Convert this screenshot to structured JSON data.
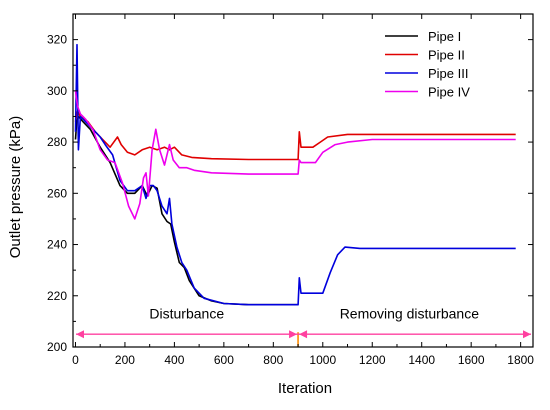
{
  "chart_data": {
    "type": "line",
    "xlabel": "Iteration",
    "ylabel": "Outlet pressure (kPa)",
    "xlim": [
      -10,
      1850
    ],
    "ylim": [
      200,
      330
    ],
    "xticks": [
      0,
      200,
      400,
      600,
      800,
      1000,
      1200,
      1400,
      1600,
      1800
    ],
    "yticks": [
      200,
      220,
      240,
      260,
      280,
      300,
      320
    ],
    "grid": false,
    "legend_position": "top-right",
    "series": [
      {
        "name": "Pipe I",
        "color": "#000000",
        "points": [
          [
            0,
            281
          ],
          [
            5,
            288
          ],
          [
            12,
            290
          ],
          [
            30,
            288
          ],
          [
            60,
            285
          ],
          [
            100,
            278
          ],
          [
            140,
            272
          ],
          [
            180,
            263
          ],
          [
            210,
            260
          ],
          [
            240,
            260
          ],
          [
            270,
            263
          ],
          [
            290,
            259
          ],
          [
            310,
            263
          ],
          [
            330,
            262
          ],
          [
            350,
            252
          ],
          [
            370,
            249
          ],
          [
            385,
            248
          ],
          [
            400,
            241
          ],
          [
            420,
            233
          ],
          [
            440,
            231
          ],
          [
            460,
            226
          ],
          [
            500,
            220
          ],
          [
            550,
            218
          ],
          [
            600,
            217
          ],
          [
            700,
            216.5
          ],
          [
            800,
            216.5
          ],
          [
            900,
            216.5
          ]
        ]
      },
      {
        "name": "Pipe II",
        "color": "#e00000",
        "points": [
          [
            0,
            288
          ],
          [
            8,
            292
          ],
          [
            20,
            290
          ],
          [
            50,
            288
          ],
          [
            80,
            284
          ],
          [
            110,
            281
          ],
          [
            140,
            278
          ],
          [
            170,
            282
          ],
          [
            185,
            279
          ],
          [
            210,
            276
          ],
          [
            240,
            275
          ],
          [
            270,
            277
          ],
          [
            300,
            278
          ],
          [
            330,
            277
          ],
          [
            360,
            278
          ],
          [
            380,
            277
          ],
          [
            400,
            278
          ],
          [
            430,
            275
          ],
          [
            470,
            274
          ],
          [
            550,
            273.5
          ],
          [
            700,
            273.2
          ],
          [
            900,
            273.2
          ],
          [
            905,
            284
          ],
          [
            912,
            278
          ],
          [
            960,
            278
          ],
          [
            990,
            280
          ],
          [
            1020,
            282
          ],
          [
            1100,
            283
          ],
          [
            1300,
            283
          ],
          [
            1500,
            283
          ],
          [
            1780,
            283
          ]
        ]
      },
      {
        "name": "Pipe III",
        "color": "#0000dd",
        "points": [
          [
            0,
            284
          ],
          [
            6,
            318
          ],
          [
            12,
            277
          ],
          [
            20,
            290
          ],
          [
            50,
            287
          ],
          [
            80,
            284
          ],
          [
            100,
            282
          ],
          [
            120,
            279
          ],
          [
            150,
            275
          ],
          [
            180,
            265
          ],
          [
            210,
            261
          ],
          [
            240,
            261
          ],
          [
            270,
            263
          ],
          [
            285,
            258
          ],
          [
            300,
            263
          ],
          [
            315,
            263
          ],
          [
            330,
            261
          ],
          [
            350,
            255
          ],
          [
            370,
            252
          ],
          [
            380,
            258
          ],
          [
            390,
            248
          ],
          [
            410,
            239
          ],
          [
            430,
            233
          ],
          [
            450,
            230
          ],
          [
            480,
            223
          ],
          [
            520,
            219
          ],
          [
            600,
            217
          ],
          [
            700,
            216.5
          ],
          [
            800,
            216.5
          ],
          [
            900,
            216.5
          ],
          [
            905,
            227
          ],
          [
            912,
            221
          ],
          [
            960,
            221
          ],
          [
            1000,
            221
          ],
          [
            1030,
            229
          ],
          [
            1060,
            236
          ],
          [
            1090,
            239
          ],
          [
            1150,
            238.5
          ],
          [
            1300,
            238.5
          ],
          [
            1500,
            238.5
          ],
          [
            1780,
            238.5
          ]
        ]
      },
      {
        "name": "Pipe IV",
        "color": "#ee00ee",
        "points": [
          [
            0,
            300
          ],
          [
            8,
            294
          ],
          [
            20,
            291
          ],
          [
            40,
            289
          ],
          [
            70,
            285
          ],
          [
            100,
            277
          ],
          [
            130,
            273
          ],
          [
            160,
            272
          ],
          [
            190,
            264
          ],
          [
            215,
            255
          ],
          [
            240,
            250
          ],
          [
            260,
            256
          ],
          [
            275,
            266
          ],
          [
            285,
            268
          ],
          [
            295,
            259
          ],
          [
            310,
            277
          ],
          [
            325,
            285
          ],
          [
            340,
            277
          ],
          [
            360,
            271
          ],
          [
            380,
            279
          ],
          [
            395,
            273
          ],
          [
            420,
            270
          ],
          [
            450,
            270
          ],
          [
            480,
            269
          ],
          [
            550,
            268
          ],
          [
            700,
            267.5
          ],
          [
            900,
            267.5
          ],
          [
            905,
            273
          ],
          [
            912,
            272
          ],
          [
            950,
            272
          ],
          [
            970,
            272
          ],
          [
            1000,
            276
          ],
          [
            1050,
            279
          ],
          [
            1100,
            280
          ],
          [
            1200,
            281
          ],
          [
            1400,
            281
          ],
          [
            1600,
            281
          ],
          [
            1780,
            281
          ]
        ]
      }
    ],
    "disturbance_line": {
      "x": 900,
      "color": "#ff8c00"
    },
    "annotations": [
      {
        "text": "Disturbance",
        "x": 450,
        "y": 213
      },
      {
        "text": "Removing disturbance",
        "x": 1350,
        "y": 213
      }
    ],
    "arrow": {
      "y": 205,
      "from": 0,
      "to": 1850,
      "split_x": 900,
      "color": "#ff40a0"
    }
  }
}
